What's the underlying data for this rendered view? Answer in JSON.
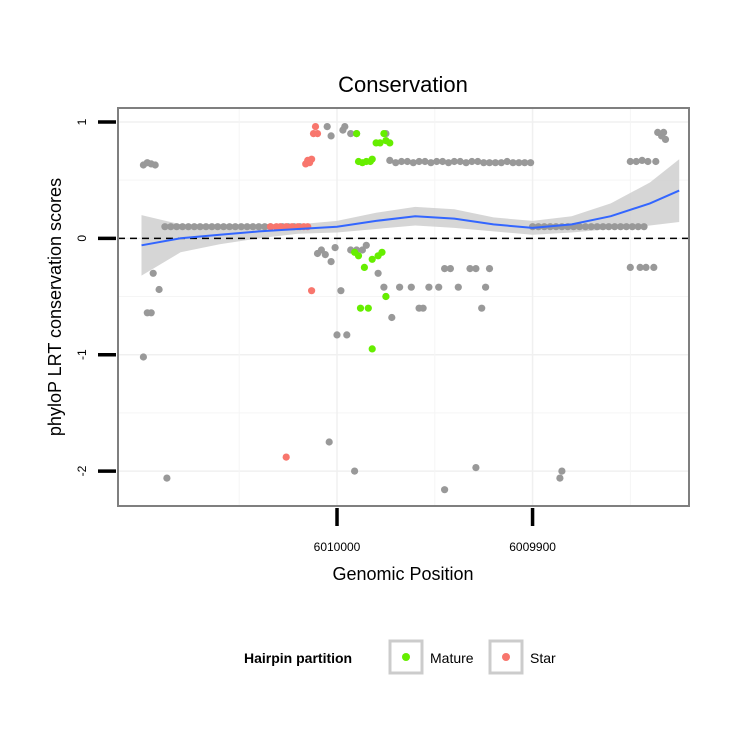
{
  "chart_data": {
    "type": "scatter",
    "title": "Conservation",
    "xlabel": "Genomic Position",
    "ylabel": "phyloP LRT conservation scores",
    "x_reversed": true,
    "xlim": [
      6010112,
      6009820
    ],
    "ylim": [
      -2.3,
      1.12
    ],
    "x_ticks": [
      {
        "value": 6010000,
        "label": "6010000"
      },
      {
        "value": 6009900,
        "label": "6009900"
      }
    ],
    "y_ticks": [
      {
        "value": 1,
        "label": "1"
      },
      {
        "value": 0,
        "label": "0"
      },
      {
        "value": -1,
        "label": "-1"
      },
      {
        "value": -2,
        "label": "-2"
      }
    ],
    "reference_line": {
      "y": 0,
      "style": "dashed"
    },
    "colors": {
      "other": "#999999",
      "Mature": "#66ee00",
      "Star": "#f8766d",
      "smooth": "#3366ff",
      "ribbon": "#cccccc",
      "panel_border": "#7f7f7f"
    },
    "legend": {
      "title": "Hairpin partition",
      "entries": [
        {
          "name": "Mature",
          "color": "#66ee00"
        },
        {
          "name": "Star",
          "color": "#f8766d"
        }
      ]
    },
    "series": [
      {
        "name": "Other",
        "color": "#999999",
        "points": [
          [
            6010099,
            0.63
          ],
          [
            6010097,
            0.65
          ],
          [
            6010095,
            0.64
          ],
          [
            6010093,
            0.63
          ],
          [
            6010099,
            -1.02
          ],
          [
            6010097,
            -0.64
          ],
          [
            6010095,
            -0.64
          ],
          [
            6010094,
            -0.3
          ],
          [
            6010091,
            -0.44
          ],
          [
            6010087,
            -2.06
          ],
          [
            6010088,
            0.1
          ],
          [
            6010085,
            0.1
          ],
          [
            6010082,
            0.1
          ],
          [
            6010079,
            0.1
          ],
          [
            6010076,
            0.1
          ],
          [
            6010073,
            0.1
          ],
          [
            6010070,
            0.1
          ],
          [
            6010067,
            0.1
          ],
          [
            6010064,
            0.1
          ],
          [
            6010061,
            0.1
          ],
          [
            6010058,
            0.1
          ],
          [
            6010055,
            0.1
          ],
          [
            6010052,
            0.1
          ],
          [
            6010049,
            0.1
          ],
          [
            6010046,
            0.1
          ],
          [
            6010043,
            0.1
          ],
          [
            6010040,
            0.1
          ],
          [
            6010037,
            0.1
          ],
          [
            6010034,
            0.1
          ],
          [
            6010028,
            0.1
          ],
          [
            6010025,
            0.1
          ],
          [
            6010022,
            0.1
          ],
          [
            6010019,
            0.1
          ],
          [
            6010005,
            0.96
          ],
          [
            6010003,
            0.88
          ],
          [
            6009997,
            0.93
          ],
          [
            6009996,
            0.96
          ],
          [
            6009993,
            0.9
          ],
          [
            6009990,
            0.9
          ],
          [
            6009975,
            0.9
          ],
          [
            6010010,
            -0.13
          ],
          [
            6010008,
            -0.1
          ],
          [
            6010006,
            -0.14
          ],
          [
            6010003,
            -0.2
          ],
          [
            6010001,
            -0.08
          ],
          [
            6009998,
            -0.45
          ],
          [
            6009993,
            -0.1
          ],
          [
            6009990,
            -0.1
          ],
          [
            6009987,
            -0.1
          ],
          [
            6009985,
            -0.06
          ],
          [
            6009979,
            -0.3
          ],
          [
            6009976,
            -0.42
          ],
          [
            6010000,
            -0.83
          ],
          [
            6009995,
            -0.83
          ],
          [
            6009975,
            -0.5
          ],
          [
            6009972,
            -0.68
          ],
          [
            6010004,
            -1.75
          ],
          [
            6009991,
            -2.0
          ],
          [
            6009973,
            0.67
          ],
          [
            6009970,
            0.65
          ],
          [
            6009967,
            0.66
          ],
          [
            6009964,
            0.66
          ],
          [
            6009961,
            0.65
          ],
          [
            6009958,
            0.66
          ],
          [
            6009955,
            0.66
          ],
          [
            6009952,
            0.65
          ],
          [
            6009949,
            0.66
          ],
          [
            6009946,
            0.66
          ],
          [
            6009943,
            0.65
          ],
          [
            6009940,
            0.66
          ],
          [
            6009937,
            0.66
          ],
          [
            6009934,
            0.65
          ],
          [
            6009931,
            0.66
          ],
          [
            6009928,
            0.66
          ],
          [
            6009925,
            0.65
          ],
          [
            6009922,
            0.65
          ],
          [
            6009919,
            0.65
          ],
          [
            6009916,
            0.65
          ],
          [
            6009913,
            0.66
          ],
          [
            6009910,
            0.65
          ],
          [
            6009907,
            0.65
          ],
          [
            6009904,
            0.65
          ],
          [
            6009901,
            0.65
          ],
          [
            6009968,
            -0.42
          ],
          [
            6009962,
            -0.42
          ],
          [
            6009958,
            -0.6
          ],
          [
            6009956,
            -0.6
          ],
          [
            6009953,
            -0.42
          ],
          [
            6009948,
            -0.42
          ],
          [
            6009945,
            -0.26
          ],
          [
            6009942,
            -0.26
          ],
          [
            6009938,
            -0.42
          ],
          [
            6009932,
            -0.26
          ],
          [
            6009929,
            -0.26
          ],
          [
            6009926,
            -0.6
          ],
          [
            6009924,
            -0.42
          ],
          [
            6009922,
            -0.26
          ],
          [
            6009945,
            -2.16
          ],
          [
            6009929,
            -1.97
          ],
          [
            6009900,
            0.1
          ],
          [
            6009897,
            0.1
          ],
          [
            6009894,
            0.1
          ],
          [
            6009891,
            0.1
          ],
          [
            6009888,
            0.1
          ],
          [
            6009885,
            0.1
          ],
          [
            6009882,
            0.1
          ],
          [
            6009879,
            0.1
          ],
          [
            6009876,
            0.1
          ],
          [
            6009873,
            0.1
          ],
          [
            6009870,
            0.1
          ],
          [
            6009867,
            0.1
          ],
          [
            6009864,
            0.1
          ],
          [
            6009861,
            0.1
          ],
          [
            6009858,
            0.1
          ],
          [
            6009855,
            0.1
          ],
          [
            6009852,
            0.1
          ],
          [
            6009849,
            0.1
          ],
          [
            6009846,
            0.1
          ],
          [
            6009843,
            0.1
          ],
          [
            6009886,
            -2.06
          ],
          [
            6009885,
            -2.0
          ],
          [
            6009850,
            0.66
          ],
          [
            6009847,
            0.66
          ],
          [
            6009844,
            0.67
          ],
          [
            6009841,
            0.66
          ],
          [
            6009837,
            0.66
          ],
          [
            6009850,
            -0.25
          ],
          [
            6009845,
            -0.25
          ],
          [
            6009842,
            -0.25
          ],
          [
            6009838,
            -0.25
          ],
          [
            6009836,
            0.91
          ],
          [
            6009834,
            0.88
          ],
          [
            6009832,
            0.85
          ],
          [
            6009833,
            0.91
          ]
        ]
      },
      {
        "name": "Mature",
        "color": "#66ee00",
        "points": [
          [
            6009990,
            0.9
          ],
          [
            6009989,
            0.66
          ],
          [
            6009987,
            0.65
          ],
          [
            6009985,
            0.66
          ],
          [
            6009983,
            0.66
          ],
          [
            6009982,
            0.68
          ],
          [
            6009980,
            0.82
          ],
          [
            6009978,
            0.82
          ],
          [
            6009976,
            0.9
          ],
          [
            6009975,
            0.84
          ],
          [
            6009973,
            0.82
          ],
          [
            6009991,
            -0.12
          ],
          [
            6009989,
            -0.15
          ],
          [
            6009988,
            -0.6
          ],
          [
            6009986,
            -0.25
          ],
          [
            6009984,
            -0.6
          ],
          [
            6009982,
            -0.95
          ],
          [
            6009982,
            -0.18
          ],
          [
            6009979,
            -0.15
          ],
          [
            6009977,
            -0.12
          ],
          [
            6009975,
            -0.5
          ]
        ]
      },
      {
        "name": "Star",
        "color": "#f8766d",
        "points": [
          [
            6010034,
            0.1
          ],
          [
            6010031,
            0.1
          ],
          [
            6010029,
            0.1
          ],
          [
            6010026,
            0.1
          ],
          [
            6010023,
            0.1
          ],
          [
            6010020,
            0.1
          ],
          [
            6010017,
            0.1
          ],
          [
            6010015,
            0.1
          ],
          [
            6010016,
            0.64
          ],
          [
            6010015,
            0.67
          ],
          [
            6010014,
            0.65
          ],
          [
            6010013,
            0.68
          ],
          [
            6010012,
            0.9
          ],
          [
            6010011,
            0.96
          ],
          [
            6010010,
            0.9
          ],
          [
            6010013,
            -0.45
          ],
          [
            6010026,
            -1.88
          ]
        ]
      }
    ],
    "smooth": {
      "method": "loess",
      "x": [
        6010100,
        6010080,
        6010060,
        6010040,
        6010020,
        6010000,
        6009980,
        6009960,
        6009940,
        6009920,
        6009900,
        6009880,
        6009860,
        6009840,
        6009825
      ],
      "y": [
        -0.06,
        0.0,
        0.03,
        0.06,
        0.08,
        0.1,
        0.15,
        0.19,
        0.17,
        0.12,
        0.09,
        0.12,
        0.19,
        0.3,
        0.41
      ],
      "lower": [
        -0.32,
        -0.12,
        -0.05,
        0.0,
        0.04,
        0.05,
        0.08,
        0.11,
        0.09,
        0.06,
        0.03,
        0.05,
        0.08,
        0.11,
        0.14
      ],
      "upper": [
        0.2,
        0.12,
        0.1,
        0.12,
        0.12,
        0.15,
        0.22,
        0.27,
        0.25,
        0.18,
        0.15,
        0.19,
        0.3,
        0.48,
        0.68
      ]
    }
  }
}
